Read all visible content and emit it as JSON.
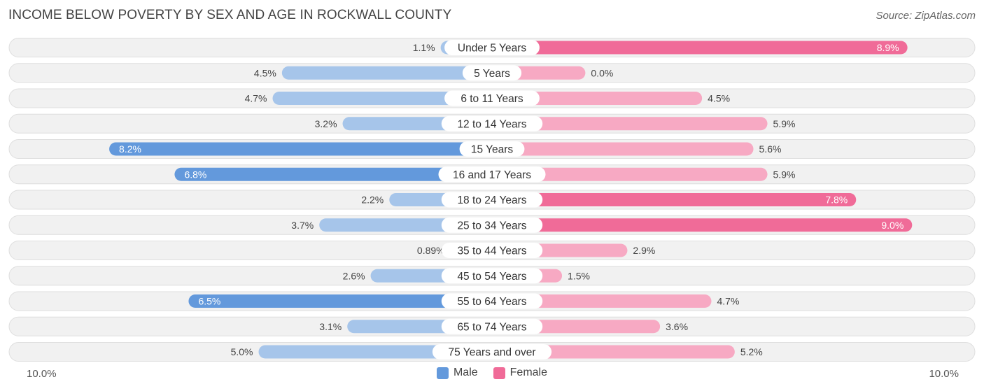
{
  "header": {
    "title": "INCOME BELOW POVERTY BY SEX AND AGE IN ROCKWALL COUNTY",
    "source": "Source: ZipAtlas.com"
  },
  "colors": {
    "male_strong": "#6399dc",
    "male_light": "#a6c5ea",
    "female_strong": "#f06b98",
    "female_light": "#f7a9c3",
    "row_bg": "#f1f1f1",
    "row_border": "#dedede"
  },
  "legend": {
    "male_label": "Male",
    "female_label": "Female"
  },
  "axis": {
    "left_label": "10.0%",
    "right_label": "10.0%"
  },
  "chart_data": {
    "type": "bar",
    "orientation": "horizontal-diverging",
    "title": "INCOME BELOW POVERTY BY SEX AND AGE IN ROCKWALL COUNTY",
    "xlim": [
      -10.0,
      10.0
    ],
    "categories": [
      "Under 5 Years",
      "5 Years",
      "6 to 11 Years",
      "12 to 14 Years",
      "15 Years",
      "16 and 17 Years",
      "18 to 24 Years",
      "25 to 34 Years",
      "35 to 44 Years",
      "45 to 54 Years",
      "55 to 64 Years",
      "65 to 74 Years",
      "75 Years and over"
    ],
    "series": [
      {
        "name": "Male",
        "values": [
          1.1,
          4.5,
          4.7,
          3.2,
          8.2,
          6.8,
          2.2,
          3.7,
          0.89,
          2.6,
          6.5,
          3.1,
          5.0
        ],
        "labels": [
          "1.1%",
          "4.5%",
          "4.7%",
          "3.2%",
          "8.2%",
          "6.8%",
          "2.2%",
          "3.7%",
          "0.89%",
          "2.6%",
          "6.5%",
          "3.1%",
          "5.0%"
        ]
      },
      {
        "name": "Female",
        "values": [
          8.9,
          0.0,
          4.5,
          5.9,
          5.6,
          5.9,
          7.8,
          9.0,
          2.9,
          1.5,
          4.7,
          3.6,
          5.2
        ],
        "labels": [
          "8.9%",
          "0.0%",
          "4.5%",
          "5.9%",
          "5.6%",
          "5.9%",
          "7.8%",
          "9.0%",
          "2.9%",
          "1.5%",
          "4.7%",
          "3.6%",
          "5.2%"
        ]
      }
    ],
    "legend_position": "bottom-center"
  }
}
